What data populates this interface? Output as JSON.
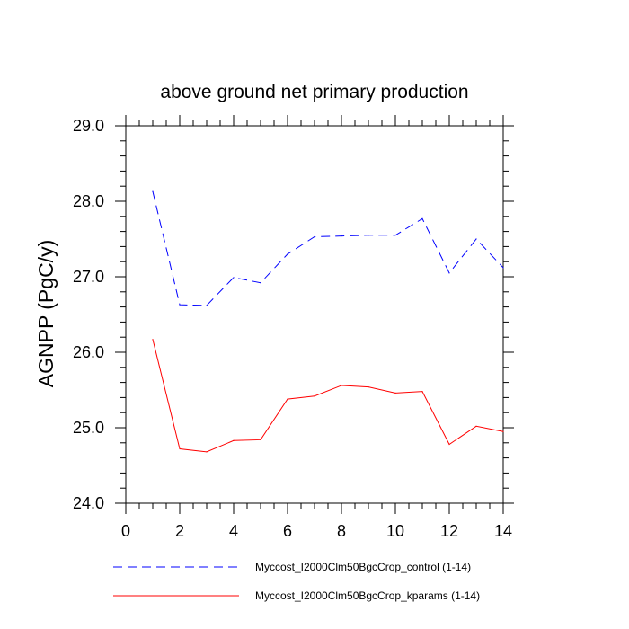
{
  "chart_data": {
    "type": "line",
    "title": "above ground net primary production",
    "xlabel": "",
    "ylabel": "AGNPP  (PgC/y)",
    "xlim": [
      0,
      14
    ],
    "ylim": [
      24.0,
      29.0
    ],
    "x_ticks": [
      "0",
      "2",
      "4",
      "6",
      "8",
      "10",
      "12",
      "14"
    ],
    "y_ticks": [
      "24.0",
      "25.0",
      "26.0",
      "27.0",
      "28.0",
      "29.0"
    ],
    "x": [
      1,
      2,
      3,
      4,
      5,
      6,
      7,
      8,
      9,
      10,
      11,
      12,
      13,
      14
    ],
    "grid": false,
    "legend_position": "bottom",
    "series": [
      {
        "name": "Myccost_I2000Clm50BgcCrop_control (1-14)",
        "color": "#0000ff",
        "dash": "dashed",
        "values": [
          28.13,
          26.63,
          26.62,
          26.99,
          26.92,
          27.3,
          27.53,
          27.54,
          27.55,
          27.55,
          27.77,
          27.05,
          27.5,
          27.12
        ]
      },
      {
        "name": "Myccost_I2000Clm50BgcCrop_kparams (1-14)",
        "color": "#ff0000",
        "dash": "solid",
        "values": [
          26.17,
          24.72,
          24.68,
          24.83,
          24.84,
          25.38,
          25.42,
          25.56,
          25.54,
          25.46,
          25.48,
          24.78,
          25.02,
          24.95
        ]
      }
    ]
  }
}
